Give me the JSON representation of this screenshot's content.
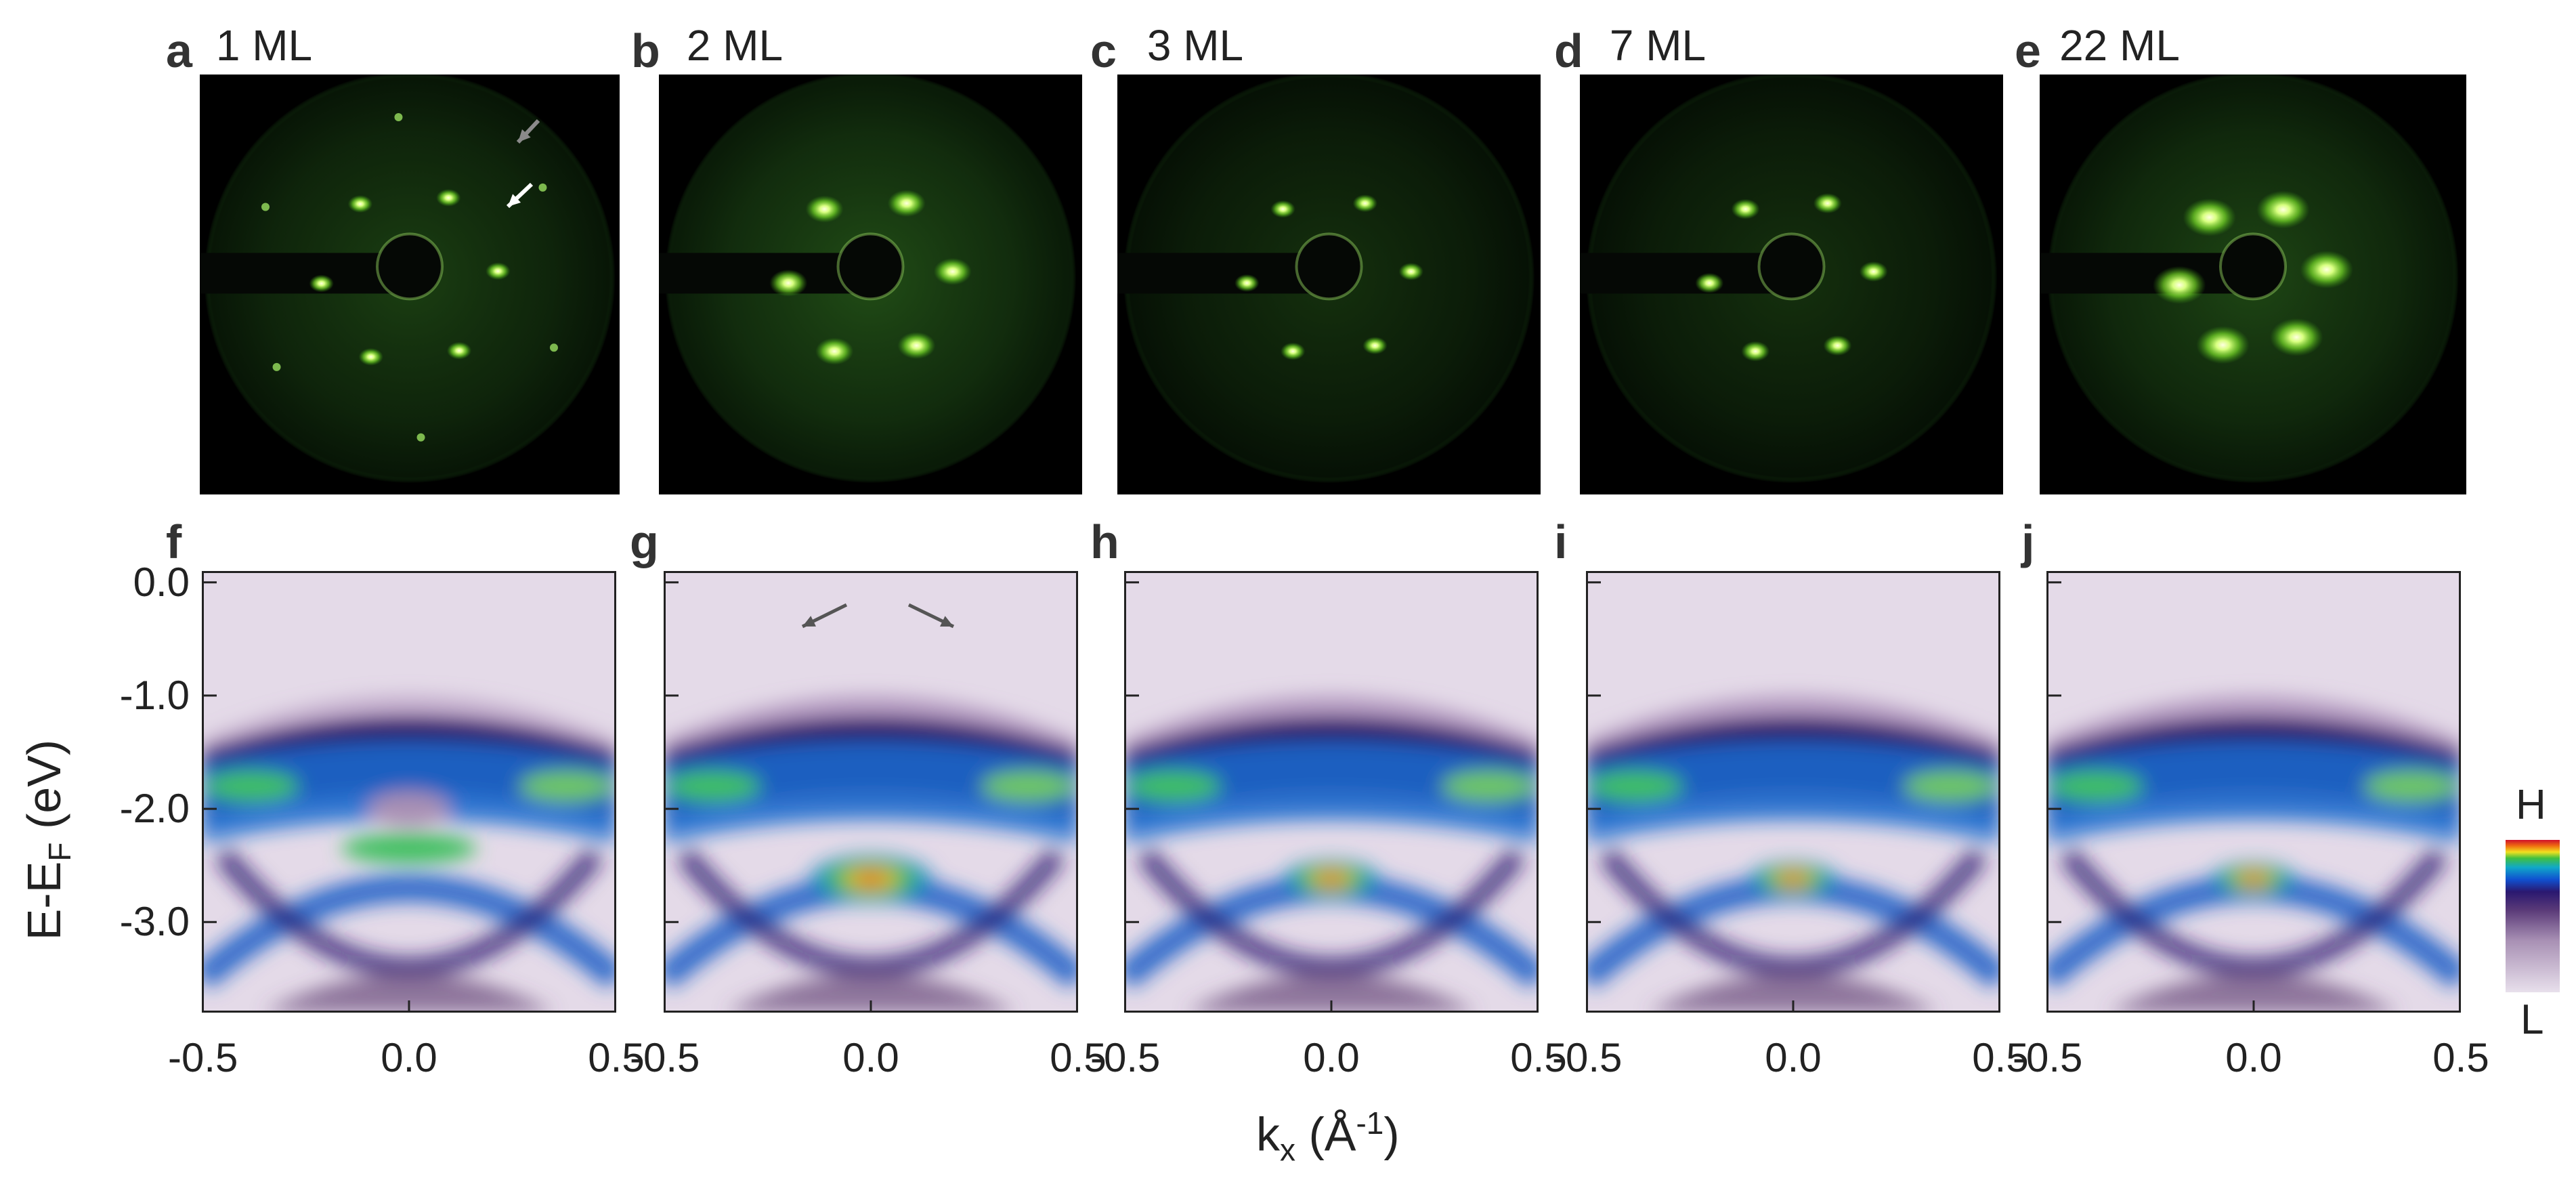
{
  "figure": {
    "top_panels": [
      {
        "letter": "a",
        "title": "1 ML"
      },
      {
        "letter": "b",
        "title": "2 ML"
      },
      {
        "letter": "c",
        "title": "3 ML"
      },
      {
        "letter": "d",
        "title": "7 ML"
      },
      {
        "letter": "e",
        "title": "22 ML"
      }
    ],
    "bottom_panels": [
      {
        "letter": "f"
      },
      {
        "letter": "g"
      },
      {
        "letter": "h"
      },
      {
        "letter": "i"
      },
      {
        "letter": "j"
      }
    ],
    "y_axis": {
      "label_main": "E-E",
      "label_sub": "F",
      "label_unit": " (eV)",
      "ticks": [
        "0.0",
        "-1.0",
        "-2.0",
        "-3.0"
      ]
    },
    "x_axis": {
      "label_main": "k",
      "label_sub": "x",
      "label_mid": " (Å",
      "label_sup": "-1",
      "label_end": ")",
      "ticks": [
        "-0.5",
        "0.0",
        "0.5"
      ]
    },
    "colorbar": {
      "high": "H",
      "low": "L"
    }
  },
  "chart_data": {
    "type": "heatmap",
    "description_fields": {
      "panels": [
        "f",
        "g",
        "h",
        "i",
        "j"
      ],
      "thickness_labels": [
        "1 ML",
        "2 ML",
        "3 ML",
        "7 ML",
        "22 ML"
      ]
    },
    "xlabel": "kx (Å-1)",
    "ylabel": "E-EF (eV)",
    "xlim": [
      -0.5,
      0.5
    ],
    "ylim": [
      -3.8,
      0.1
    ],
    "x_ticks": [
      -0.5,
      0.0,
      0.5
    ],
    "y_ticks": [
      0.0,
      -1.0,
      -2.0,
      -3.0
    ],
    "colormap_range": [
      "L",
      "H"
    ]
  }
}
